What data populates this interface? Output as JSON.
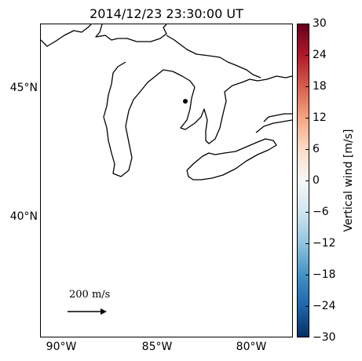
{
  "title": "2014/12/23 23:30:00 UT",
  "lat_labels": [
    "45°N",
    "40°N"
  ],
  "lon_labels": [
    "90°W",
    "85°W",
    "80°W"
  ],
  "colorbar": {
    "label": "Vertical wind [m/s]",
    "ticks": [
      "30",
      "24",
      "18",
      "12",
      "6",
      "0",
      "−6",
      "−12",
      "−18",
      "−24",
      "−30"
    ],
    "colormap": "RdBu_r",
    "colors": {
      "max": "#67001f",
      "mid": "#f7f7f7",
      "min": "#053061"
    }
  },
  "scale_arrow": {
    "label": "200 m/s"
  },
  "marker": {
    "color": "#000000"
  }
}
